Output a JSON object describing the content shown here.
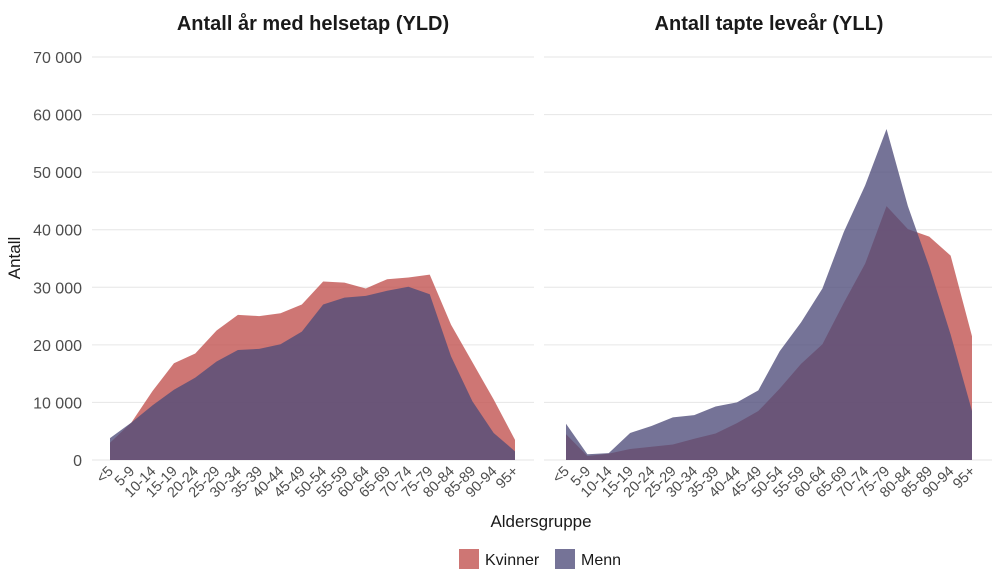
{
  "chart_data": {
    "type": "area",
    "ylabel": "Antall",
    "xlabel": "Aldersgruppe",
    "ylim": [
      0,
      70000
    ],
    "yticks": [
      0,
      10000,
      20000,
      30000,
      40000,
      50000,
      60000,
      70000
    ],
    "ytick_labels": [
      "0",
      "10 000",
      "20 000",
      "30 000",
      "40 000",
      "50 000",
      "60 000",
      "70 000"
    ],
    "categories": [
      "<5",
      "5-9",
      "10-14",
      "15-19",
      "20-24",
      "25-29",
      "30-34",
      "35-39",
      "40-44",
      "45-49",
      "50-54",
      "55-59",
      "60-64",
      "65-69",
      "70-74",
      "75-79",
      "80-84",
      "85-89",
      "90-94",
      "95+"
    ],
    "legend": {
      "position": "bottom",
      "entries": [
        {
          "name": "Kvinner",
          "color": "#c0504d"
        },
        {
          "name": "Menn",
          "color": "#4e4c7a"
        }
      ]
    },
    "panels": [
      {
        "title": "Antall år med helsetap (YLD)",
        "series": [
          {
            "name": "Kvinner",
            "values": [
              3000,
              6500,
              12000,
              16800,
              18500,
              22500,
              25200,
              25000,
              25500,
              27000,
              31000,
              30800,
              29800,
              31400,
              31700,
              32200,
              23500,
              17000,
              10500,
              3500
            ]
          },
          {
            "name": "Menn",
            "values": [
              3800,
              6500,
              9500,
              12200,
              14300,
              17100,
              19100,
              19300,
              20100,
              22300,
              27000,
              28200,
              28500,
              29400,
              30100,
              28800,
              18000,
              10200,
              4700,
              1500
            ]
          }
        ]
      },
      {
        "title": "Antall tapte leveår (YLL)",
        "series": [
          {
            "name": "Kvinner",
            "values": [
              4500,
              700,
              1100,
              1900,
              2300,
              2700,
              3700,
              4600,
              6400,
              8500,
              12400,
              16700,
              20100,
              27300,
              34100,
              44100,
              40100,
              38800,
              35500,
              21500
            ]
          },
          {
            "name": "Menn",
            "values": [
              6300,
              1000,
              1200,
              4700,
              5900,
              7400,
              7800,
              9300,
              10000,
              12100,
              18900,
              23900,
              29800,
              39600,
              47700,
              57500,
              44100,
              33600,
              21800,
              8500
            ]
          }
        ]
      }
    ]
  }
}
